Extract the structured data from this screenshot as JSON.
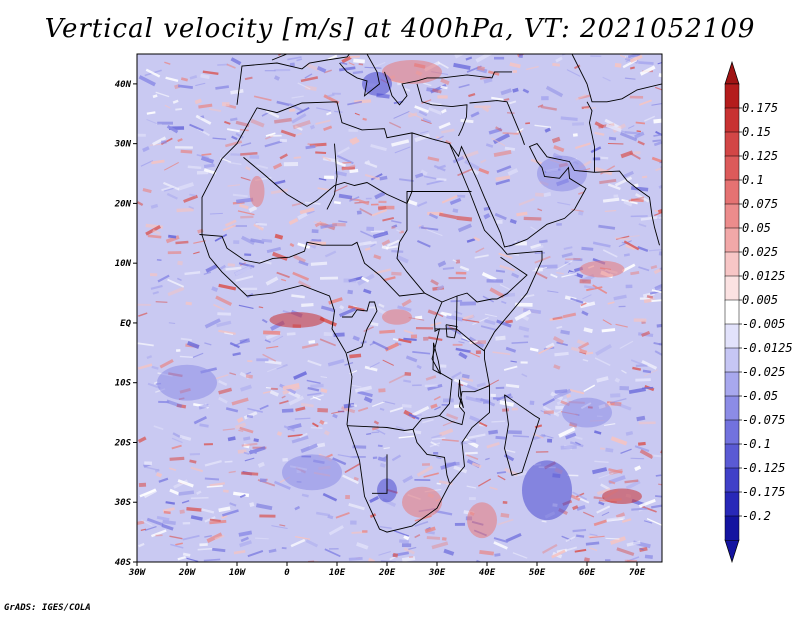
{
  "title": "Vertical velocity [m/s] at 400hPa, VT: 2021052109",
  "credit": "GrADS: IGES/COLA",
  "map": {
    "lon_range": [
      -30,
      75
    ],
    "lat_range": [
      -40,
      45
    ],
    "lon_ticks": [
      "30W",
      "20W",
      "10W",
      "0",
      "10E",
      "20E",
      "30E",
      "40E",
      "50E",
      "60E",
      "70E"
    ],
    "lat_ticks": [
      "40N",
      "30N",
      "20N",
      "10N",
      "EQ",
      "10S",
      "20S",
      "30S",
      "40S"
    ]
  },
  "colorbar": {
    "labels": [
      "0.175",
      "0.15",
      "0.125",
      "0.1",
      "0.075",
      "0.05",
      "0.025",
      "0.0125",
      "0.005",
      "-0.005",
      "-0.0125",
      "-0.025",
      "-0.05",
      "-0.075",
      "-0.1",
      "-0.125",
      "-0.175",
      "-0.2"
    ],
    "colors": [
      "#b41c1c",
      "#c83232",
      "#d24646",
      "#dc5a5a",
      "#e57272",
      "#ec8c8c",
      "#f2a8a8",
      "#f7c6c6",
      "#fbe2e2",
      "#ffffff",
      "#e2e2fb",
      "#c6c6f4",
      "#a8a8ee",
      "#8c8ce6",
      "#7272de",
      "#5a5ad4",
      "#4040c8",
      "#2828b8",
      "#1414a0"
    ],
    "top_arrow_color": "#a01414",
    "bottom_arrow_color": "#1414a0"
  },
  "palette": {
    "field_base": "#c9c9f2",
    "strong_red": "#c83030",
    "red": "#e87878",
    "strong_blue": "#4a4ad0",
    "blue": "#8c8ce6",
    "outline": "#000000"
  }
}
